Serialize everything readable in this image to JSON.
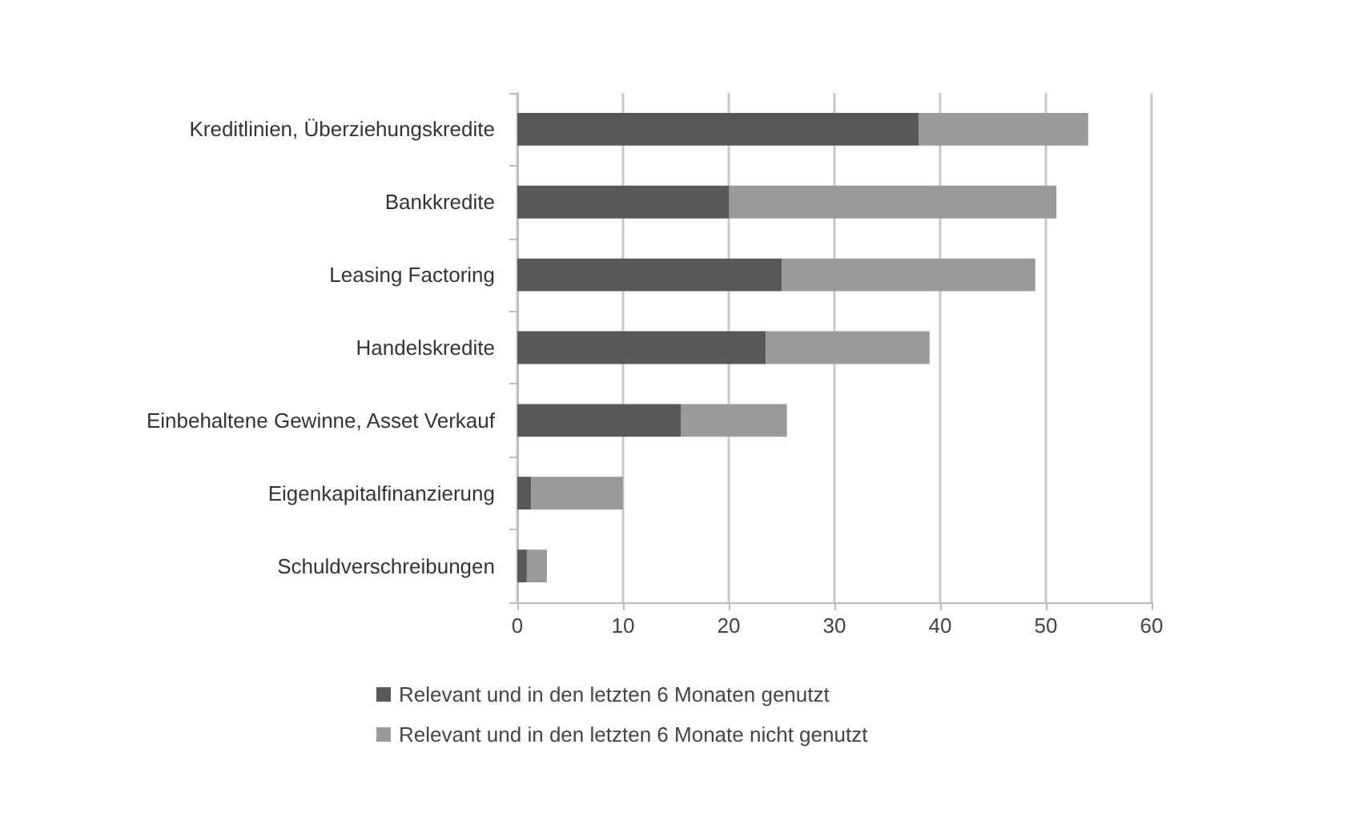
{
  "chart_data": {
    "type": "bar",
    "orientation": "horizontal",
    "stacked": true,
    "categories": [
      "Kreditlinien, Überziehungskredite",
      "Bankkredite",
      "Leasing Factoring",
      "Handelskredite",
      "Einbehaltene Gewinne, Asset Verkauf",
      "Eigenkapitalfinanzierung",
      "Schuldverschreibungen"
    ],
    "series": [
      {
        "name": "Relevant und in den letzten 6 Monaten genutzt",
        "color": "#58585a",
        "values": [
          38,
          20,
          25,
          23.5,
          15.5,
          1.3,
          0.9
        ]
      },
      {
        "name": "Relevant und in den letzten 6 Monate nicht genutzt",
        "color": "#9a9a9c",
        "values": [
          16,
          31,
          24,
          15.5,
          10,
          8.7,
          1.9
        ]
      }
    ],
    "xlim": [
      0,
      60
    ],
    "xticks": [
      0,
      10,
      20,
      30,
      40,
      50,
      60
    ],
    "grid": "x",
    "legend": "bottom"
  }
}
